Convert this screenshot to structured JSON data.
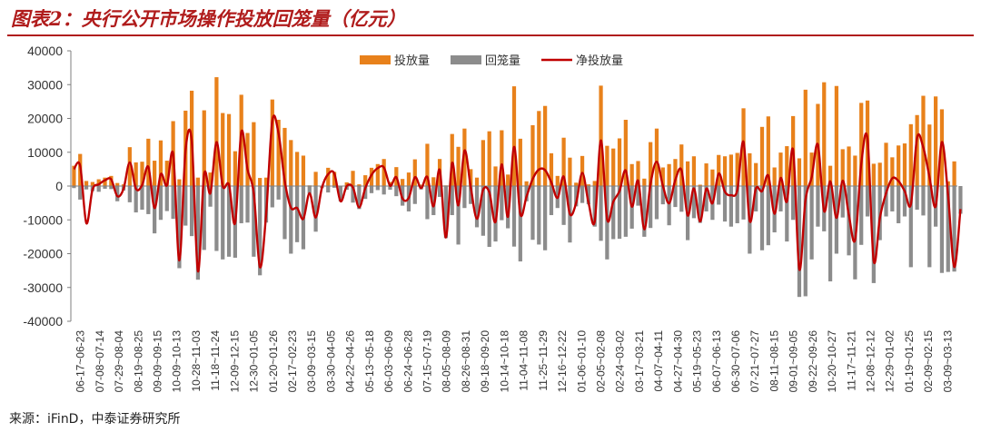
{
  "figure_title": "图表2：央行公开市场操作投放回笼量（亿元）",
  "source": "来源：iFinD，中泰证券研究所",
  "colors": {
    "put": "#e8811b",
    "withdraw": "#8c8c8c",
    "net": "#c00000",
    "title": "#b01c1c"
  },
  "chart_data": {
    "type": "bar",
    "legend": [
      "投放量",
      "回笼量",
      "净投放量"
    ],
    "legend_position": "top-center",
    "ylim": [
      -40000,
      40000
    ],
    "yticks": [
      -40000,
      -30000,
      -20000,
      -10000,
      0,
      10000,
      20000,
      30000,
      40000
    ],
    "grid": false,
    "xtick_labels": [
      "06-17~06-23",
      "07-08~07-14",
      "07-29~08-04",
      "08-19~08-25",
      "09-09~09-15",
      "10-09~10-13",
      "10-28~11-03",
      "11-18~11-24",
      "12-09~12-15",
      "12-30~01-05",
      "01-20~01-26",
      "02-17~02-23",
      "03-09~03-15",
      "03-30~04-05",
      "04-22~04-26",
      "05-13~05-18",
      "06-03~06-09",
      "06-24~06-28",
      "07-15~07-19",
      "08-05~08-09",
      "08-26~08-31",
      "09-18~09-20",
      "10-14~10-18",
      "11-04~11-08",
      "11-25~11-29",
      "12-16~12-22",
      "01-06~01-10",
      "02-05~02-08",
      "02-24~03-02",
      "03-17~03-21",
      "04-07~04-11",
      "04-27~04-30",
      "05-19~05-23",
      "06-07~06-13",
      "06-30~07-06",
      "07-21~07-27",
      "08-11~08-15",
      "09-01~09-05",
      "09-22~09-26",
      "10-20~10-27",
      "11-17~11-21",
      "12-08~12-12",
      "12-29~01-02",
      "01-19~01-25",
      "02-09~02-15",
      "03-09~03-13"
    ],
    "series": [
      {
        "name": "投放量",
        "type": "bar",
        "values": [
          6000,
          9500,
          1500,
          1200,
          2000,
          2500,
          3000,
          900,
          500,
          11500,
          7000,
          7200,
          14000,
          7500,
          13500,
          7500,
          19200,
          2000,
          22300,
          28200,
          2500,
          22400,
          4000,
          32200,
          21600,
          21300,
          10300,
          27000,
          15700,
          18900,
          2400,
          2500,
          25600,
          19600,
          17200,
          13600,
          10100,
          9000,
          200,
          4200,
          100,
          5400,
          4200,
          0,
          1100,
          4500,
          500,
          3200,
          5400,
          6500,
          8000,
          1200,
          5600,
          2100,
          4000,
          7900,
          400,
          12500,
          2600,
          8000,
          200,
          15400,
          11600,
          17000,
          5000,
          2500,
          13600,
          16200,
          5800,
          16500,
          3400,
          29500,
          14000,
          1400,
          18000,
          22200,
          23700,
          9700,
          3000,
          14300,
          8400,
          1000,
          8900,
          500,
          1500,
          29700,
          11900,
          11100,
          14100,
          19600,
          6500,
          7400,
          2200,
          13000,
          17000,
          5500,
          6500,
          8000,
          12300,
          7300,
          8800,
          400,
          6700,
          4900,
          9200,
          8800,
          9300,
          9800,
          23000,
          9700,
          6800,
          17500,
          20600,
          5500,
          9900,
          11800,
          20700,
          8200,
          28500,
          9900,
          24300,
          30700,
          6000,
          29600,
          10900,
          11700,
          9000,
          24600,
          25300,
          6600,
          6900,
          12800,
          8500,
          12000,
          12600,
          18300,
          21000,
          26700,
          18200,
          26500,
          22700,
          1400,
          7300
        ]
      },
      {
        "name": "回笼量",
        "type": "bar",
        "values": [
          -600,
          -4000,
          -1000,
          -1500,
          -1700,
          -800,
          -900,
          -4500,
          -1300,
          -4800,
          -7800,
          -7000,
          -8300,
          -14000,
          -10000,
          -7400,
          -9700,
          -24300,
          -11700,
          -14800,
          -27700,
          -18900,
          -6100,
          -19200,
          -21700,
          -20900,
          -21200,
          -11000,
          -10800,
          -20900,
          -26400,
          -10800,
          -6300,
          -4000,
          -15700,
          -20000,
          -16600,
          -18700,
          -2300,
          -13500,
          -600,
          -1900,
          -500,
          -4500,
          -1100,
          -4900,
          -6800,
          -3800,
          -2100,
          -1200,
          -2500,
          -1100,
          -3000,
          -5800,
          -7500,
          -5300,
          -1000,
          -9800,
          -8600,
          -3200,
          -15400,
          -8600,
          -17300,
          -6500,
          -5300,
          -12200,
          -14700,
          -18000,
          -16400,
          -10100,
          -12500,
          -17900,
          -22300,
          -4500,
          -15900,
          -17300,
          -19000,
          -8600,
          -6500,
          -11500,
          -16700,
          -6000,
          -5000,
          -5400,
          -12000,
          -16200,
          -21700,
          -15700,
          -15600,
          -15000,
          -12600,
          -5800,
          -15000,
          -12400,
          -9800,
          -5400,
          -11600,
          -6200,
          -7600,
          -16000,
          -9500,
          -10900,
          -7500,
          -10000,
          -5500,
          -10500,
          -12000,
          -11000,
          -9900,
          -20000,
          -7500,
          -19000,
          -17500,
          -13700,
          -7500,
          -16400,
          -10000,
          -32800,
          -32600,
          -21700,
          -12000,
          -13400,
          -28200,
          -20000,
          -9300,
          -20500,
          -27600,
          -17400,
          -9000,
          -28700,
          -16000,
          -9000,
          -7500,
          -11000,
          -9000,
          -24000,
          -7000,
          -8700,
          -24000,
          -12000,
          -25700,
          -25400,
          -25300,
          -8200
        ]
      },
      {
        "name": "净投放量",
        "type": "line",
        "values": [
          5000,
          6000,
          -11000,
          -1000,
          500,
          1700,
          2000,
          -3000,
          -800,
          7000,
          -800,
          300,
          5700,
          -6500,
          3500,
          200,
          9500,
          -22000,
          10600,
          13400,
          -25200,
          3500,
          -2100,
          13000,
          0,
          400,
          -10900,
          16000,
          4900,
          -2000,
          -24000,
          -8300,
          19300,
          15600,
          1500,
          -6400,
          -6500,
          -9700,
          -2100,
          -9300,
          -500,
          3500,
          3700,
          -4500,
          0,
          -400,
          -6300,
          -600,
          3300,
          5300,
          5500,
          100,
          2600,
          -3700,
          -3500,
          2600,
          -600,
          2700,
          -6000,
          4800,
          -15200,
          6800,
          -5700,
          10500,
          -300,
          -9700,
          -1100,
          -1800,
          -10600,
          6400,
          -9100,
          11600,
          -8300,
          -3100,
          2100,
          4900,
          4700,
          1100,
          -3500,
          2800,
          -8300,
          -5000,
          3900,
          -4900,
          -10500,
          13500,
          -9800,
          -4600,
          -1500,
          4600,
          -6100,
          1600,
          -12800,
          600,
          7200,
          100,
          -5100,
          1800,
          4700,
          -8700,
          -700,
          -10500,
          -800,
          -5100,
          3700,
          -1700,
          -2700,
          -1200,
          13100,
          -10300,
          -700,
          -1500,
          3100,
          -8200,
          2400,
          -4600,
          10700,
          -24600,
          -4100,
          2600,
          12300,
          -7400,
          1400,
          -9400,
          1600,
          -8600,
          -15900,
          6600,
          14000,
          -22100,
          -9400,
          -2100,
          2300,
          1500,
          -1500,
          -5400,
          14300,
          11400,
          2700,
          -6000,
          13000,
          -2700,
          -23900,
          -6800
        ]
      }
    ]
  }
}
